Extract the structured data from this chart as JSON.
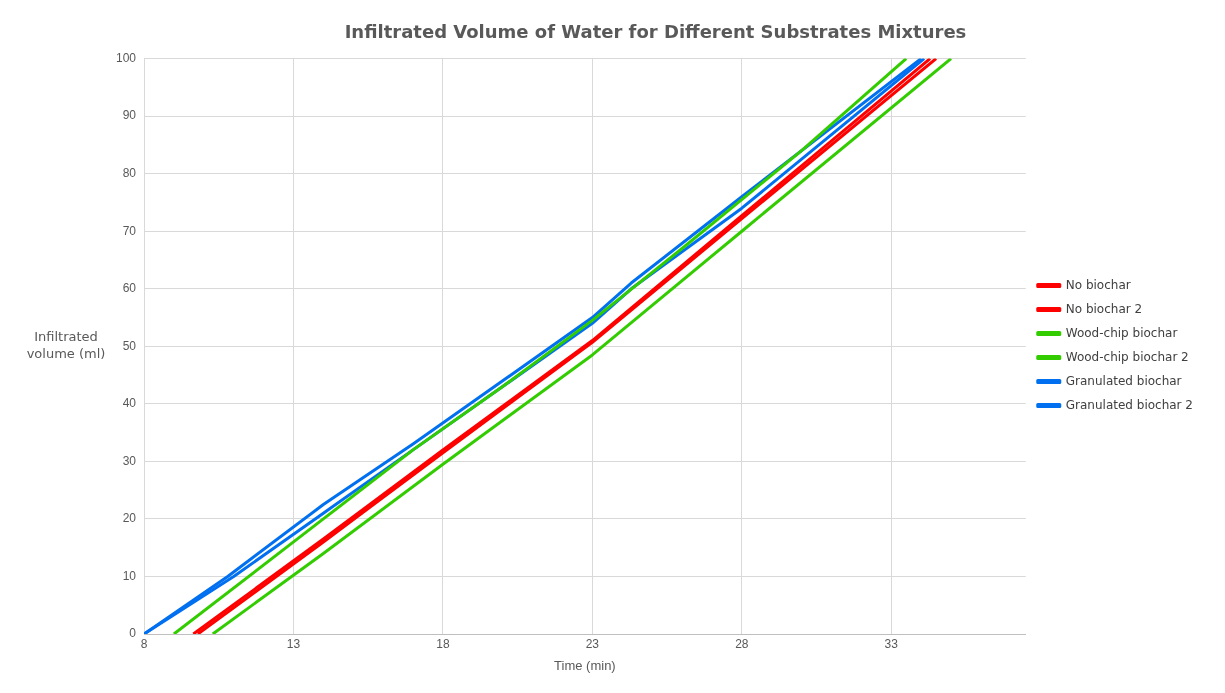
{
  "chart_data": {
    "type": "line",
    "title": "Infiltrated Volume of Water for Different Substrates Mixtures",
    "xlabel": "Time (min)",
    "ylabel": "Infiltrated volume (ml)",
    "xlim": [
      8,
      37.5
    ],
    "xticks": [
      8,
      13,
      18,
      23,
      28,
      33
    ],
    "ylim": [
      0,
      100
    ],
    "yticks": [
      0,
      10,
      20,
      30,
      40,
      50,
      60,
      70,
      80,
      90,
      100
    ],
    "grid": true,
    "legend": "right",
    "marker": "none",
    "line_style": "solid",
    "series": [
      {
        "name": "No biochar",
        "color": "#ff0000",
        "x": [
          9.65,
          14,
          18,
          23,
          28,
          34.3
        ],
        "values": [
          0,
          16.5,
          32,
          51,
          72.7,
          100
        ]
      },
      {
        "name": "No biochar 2",
        "color": "#ff0000",
        "x": [
          9.8,
          14,
          18,
          23,
          28,
          34.5
        ],
        "values": [
          0,
          16,
          31.5,
          50.7,
          72.2,
          100
        ]
      },
      {
        "name": "Wood-chip biochar",
        "color": "#33cc00",
        "x": [
          9,
          14,
          17,
          20,
          23,
          26,
          30,
          33.5
        ],
        "values": [
          0,
          20,
          32,
          43,
          54.5,
          67,
          84,
          100
        ]
      },
      {
        "name": "Wood-chip biochar 2",
        "color": "#33cc00",
        "x": [
          10.3,
          14,
          18,
          23,
          28,
          35
        ],
        "values": [
          0,
          14,
          29.5,
          48.5,
          70,
          100
        ]
      },
      {
        "name": "Granulated biochar",
        "color": "#0070f0",
        "x": [
          8,
          10.8,
          14,
          17,
          20,
          23,
          24.3,
          28,
          34
        ],
        "values": [
          0,
          10,
          22.5,
          33,
          44,
          55,
          61,
          76,
          100
        ]
      },
      {
        "name": "Granulated biochar 2",
        "color": "#0070f0",
        "x": [
          8,
          11,
          14,
          17,
          20,
          23,
          24.3,
          28,
          34.1
        ],
        "values": [
          0,
          10,
          21,
          32,
          43,
          54,
          60,
          74,
          100
        ]
      }
    ]
  }
}
